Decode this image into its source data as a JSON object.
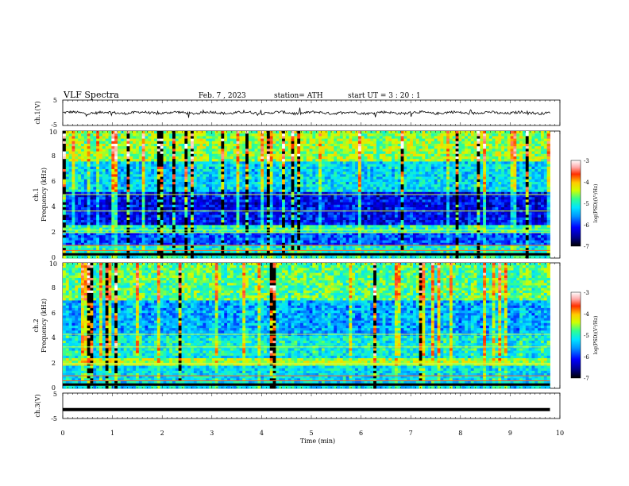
{
  "header": {
    "title": "VLF  Spectra",
    "date": "Feb. 7  , 2023",
    "station": "station= ATH",
    "start": "start  UT  =   3  : 20 : 1"
  },
  "chart_data": [
    {
      "type": "line",
      "panel": "ch1-waveform",
      "ylabel": "ch.1(V)",
      "ylim": [
        -5,
        5
      ],
      "yticks": [
        "5",
        "-5"
      ],
      "xlim": [
        0,
        10
      ],
      "series": [
        {
          "values_description_range": [
            -1.2,
            1.2
          ]
        }
      ]
    },
    {
      "type": "heatmap",
      "panel": "ch1-spectrogram",
      "ylabel_top": "ch.1",
      "ylabel": "Frequency  (kHz)",
      "ylim": [
        0,
        10
      ],
      "yticks": [
        "0",
        "2",
        "4",
        "6",
        "8",
        "10"
      ],
      "xlim": [
        0,
        9.8
      ],
      "colorbar": {
        "label": "log(PSD)(V²/Hz)",
        "range": [
          -7,
          -3
        ],
        "ticks": [
          "-3",
          "-4",
          "-5",
          "-6",
          "-7"
        ]
      }
    },
    {
      "type": "heatmap",
      "panel": "ch2-spectrogram",
      "ylabel_top": "ch.2",
      "ylabel": "Frequency  (kHz)",
      "ylim": [
        0,
        10
      ],
      "yticks": [
        "0",
        "2",
        "4",
        "6",
        "8",
        "10"
      ],
      "xlim": [
        0,
        9.8
      ],
      "colorbar": {
        "label": "log(PSD)(V²/Hz)",
        "range": [
          -7,
          -3
        ],
        "ticks": [
          "-3",
          "-4",
          "-5",
          "-6",
          "-7"
        ]
      }
    },
    {
      "type": "line",
      "panel": "ch3-waveform",
      "ylabel": "ch.3(V)",
      "ylim": [
        -5,
        5
      ],
      "yticks": [
        "5",
        "-5"
      ],
      "xlim": [
        0,
        9.8
      ],
      "series": [
        {
          "constant_value": -1.5
        }
      ]
    }
  ],
  "xaxis": {
    "label": "Time  (min)",
    "ticks": [
      "0",
      "1",
      "2",
      "3",
      "4",
      "5",
      "6",
      "7",
      "8",
      "9",
      "10"
    ],
    "range": [
      0,
      10
    ]
  },
  "colors": {
    "background": "#ffffff",
    "waveform": "#000000",
    "scale": [
      "#000000",
      "#00008b",
      "#0000ff",
      "#0096ff",
      "#00e5ff",
      "#30ff90",
      "#d0ff00",
      "#ffcc00",
      "#ff3000",
      "#ffffff"
    ]
  }
}
